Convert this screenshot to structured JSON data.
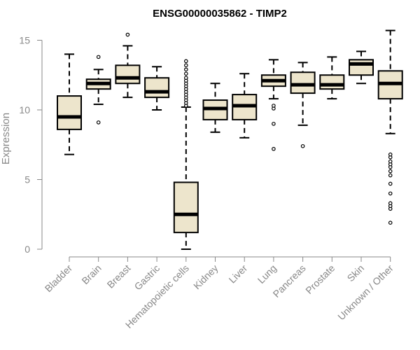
{
  "chart_data": {
    "type": "boxplot",
    "title": "ENSG00000035862 - TIMP2",
    "xlabel": "",
    "ylabel": "Expression",
    "ylim": [
      0,
      15.8
    ],
    "yticks": [
      0,
      5,
      10,
      15
    ],
    "grid": false,
    "box_fill": "#ede5cc",
    "categories": [
      "Bladder",
      "Brain",
      "Breast",
      "Gastric",
      "Hematopoietic cells",
      "Kidney",
      "Liver",
      "Lung",
      "Pancreas",
      "Prostate",
      "Skin",
      "Unknown / Other"
    ],
    "boxes": [
      {
        "name": "Bladder",
        "whisker_low": 6.8,
        "q1": 8.6,
        "median": 9.5,
        "q3": 11.0,
        "whisker_high": 14.0,
        "outliers": []
      },
      {
        "name": "Brain",
        "whisker_low": 10.4,
        "q1": 11.5,
        "median": 11.9,
        "q3": 12.2,
        "whisker_high": 12.9,
        "outliers": [
          9.1,
          13.8
        ]
      },
      {
        "name": "Breast",
        "whisker_low": 10.9,
        "q1": 11.9,
        "median": 12.3,
        "q3": 13.2,
        "whisker_high": 14.6,
        "outliers": [
          15.4
        ]
      },
      {
        "name": "Gastric",
        "whisker_low": 10.0,
        "q1": 10.9,
        "median": 11.3,
        "q3": 12.3,
        "whisker_high": 13.1,
        "outliers": []
      },
      {
        "name": "Hematopoietic cells",
        "whisker_low": 0.0,
        "q1": 1.2,
        "median": 2.5,
        "q3": 4.8,
        "whisker_high": 10.2,
        "outliers": [
          10.3,
          10.5,
          10.7,
          10.9,
          11.1,
          11.3,
          11.5,
          11.7,
          11.9,
          12.1,
          12.3,
          12.6,
          12.9,
          13.2,
          13.5
        ]
      },
      {
        "name": "Kidney",
        "whisker_low": 8.4,
        "q1": 9.3,
        "median": 10.1,
        "q3": 10.7,
        "whisker_high": 11.9,
        "outliers": []
      },
      {
        "name": "Liver",
        "whisker_low": 8.0,
        "q1": 9.3,
        "median": 10.3,
        "q3": 11.1,
        "whisker_high": 12.6,
        "outliers": []
      },
      {
        "name": "Lung",
        "whisker_low": 10.8,
        "q1": 11.7,
        "median": 12.1,
        "q3": 12.5,
        "whisker_high": 13.6,
        "outliers": [
          7.2,
          9.0,
          10.1,
          10.3
        ]
      },
      {
        "name": "Pancreas",
        "whisker_low": 8.9,
        "q1": 11.2,
        "median": 11.8,
        "q3": 12.7,
        "whisker_high": 13.4,
        "outliers": [
          7.4
        ]
      },
      {
        "name": "Prostate",
        "whisker_low": 10.8,
        "q1": 11.5,
        "median": 11.8,
        "q3": 12.5,
        "whisker_high": 13.8,
        "outliers": []
      },
      {
        "name": "Skin",
        "whisker_low": 11.9,
        "q1": 12.5,
        "median": 13.3,
        "q3": 13.6,
        "whisker_high": 14.2,
        "outliers": []
      },
      {
        "name": "Unknown / Other",
        "whisker_low": 8.3,
        "q1": 10.8,
        "median": 11.9,
        "q3": 12.8,
        "whisker_high": 15.7,
        "outliers": [
          1.9,
          2.9,
          3.1,
          3.3,
          4.0,
          4.7,
          5.3,
          5.6,
          5.9,
          6.1,
          6.3,
          6.6,
          6.8
        ]
      }
    ]
  }
}
